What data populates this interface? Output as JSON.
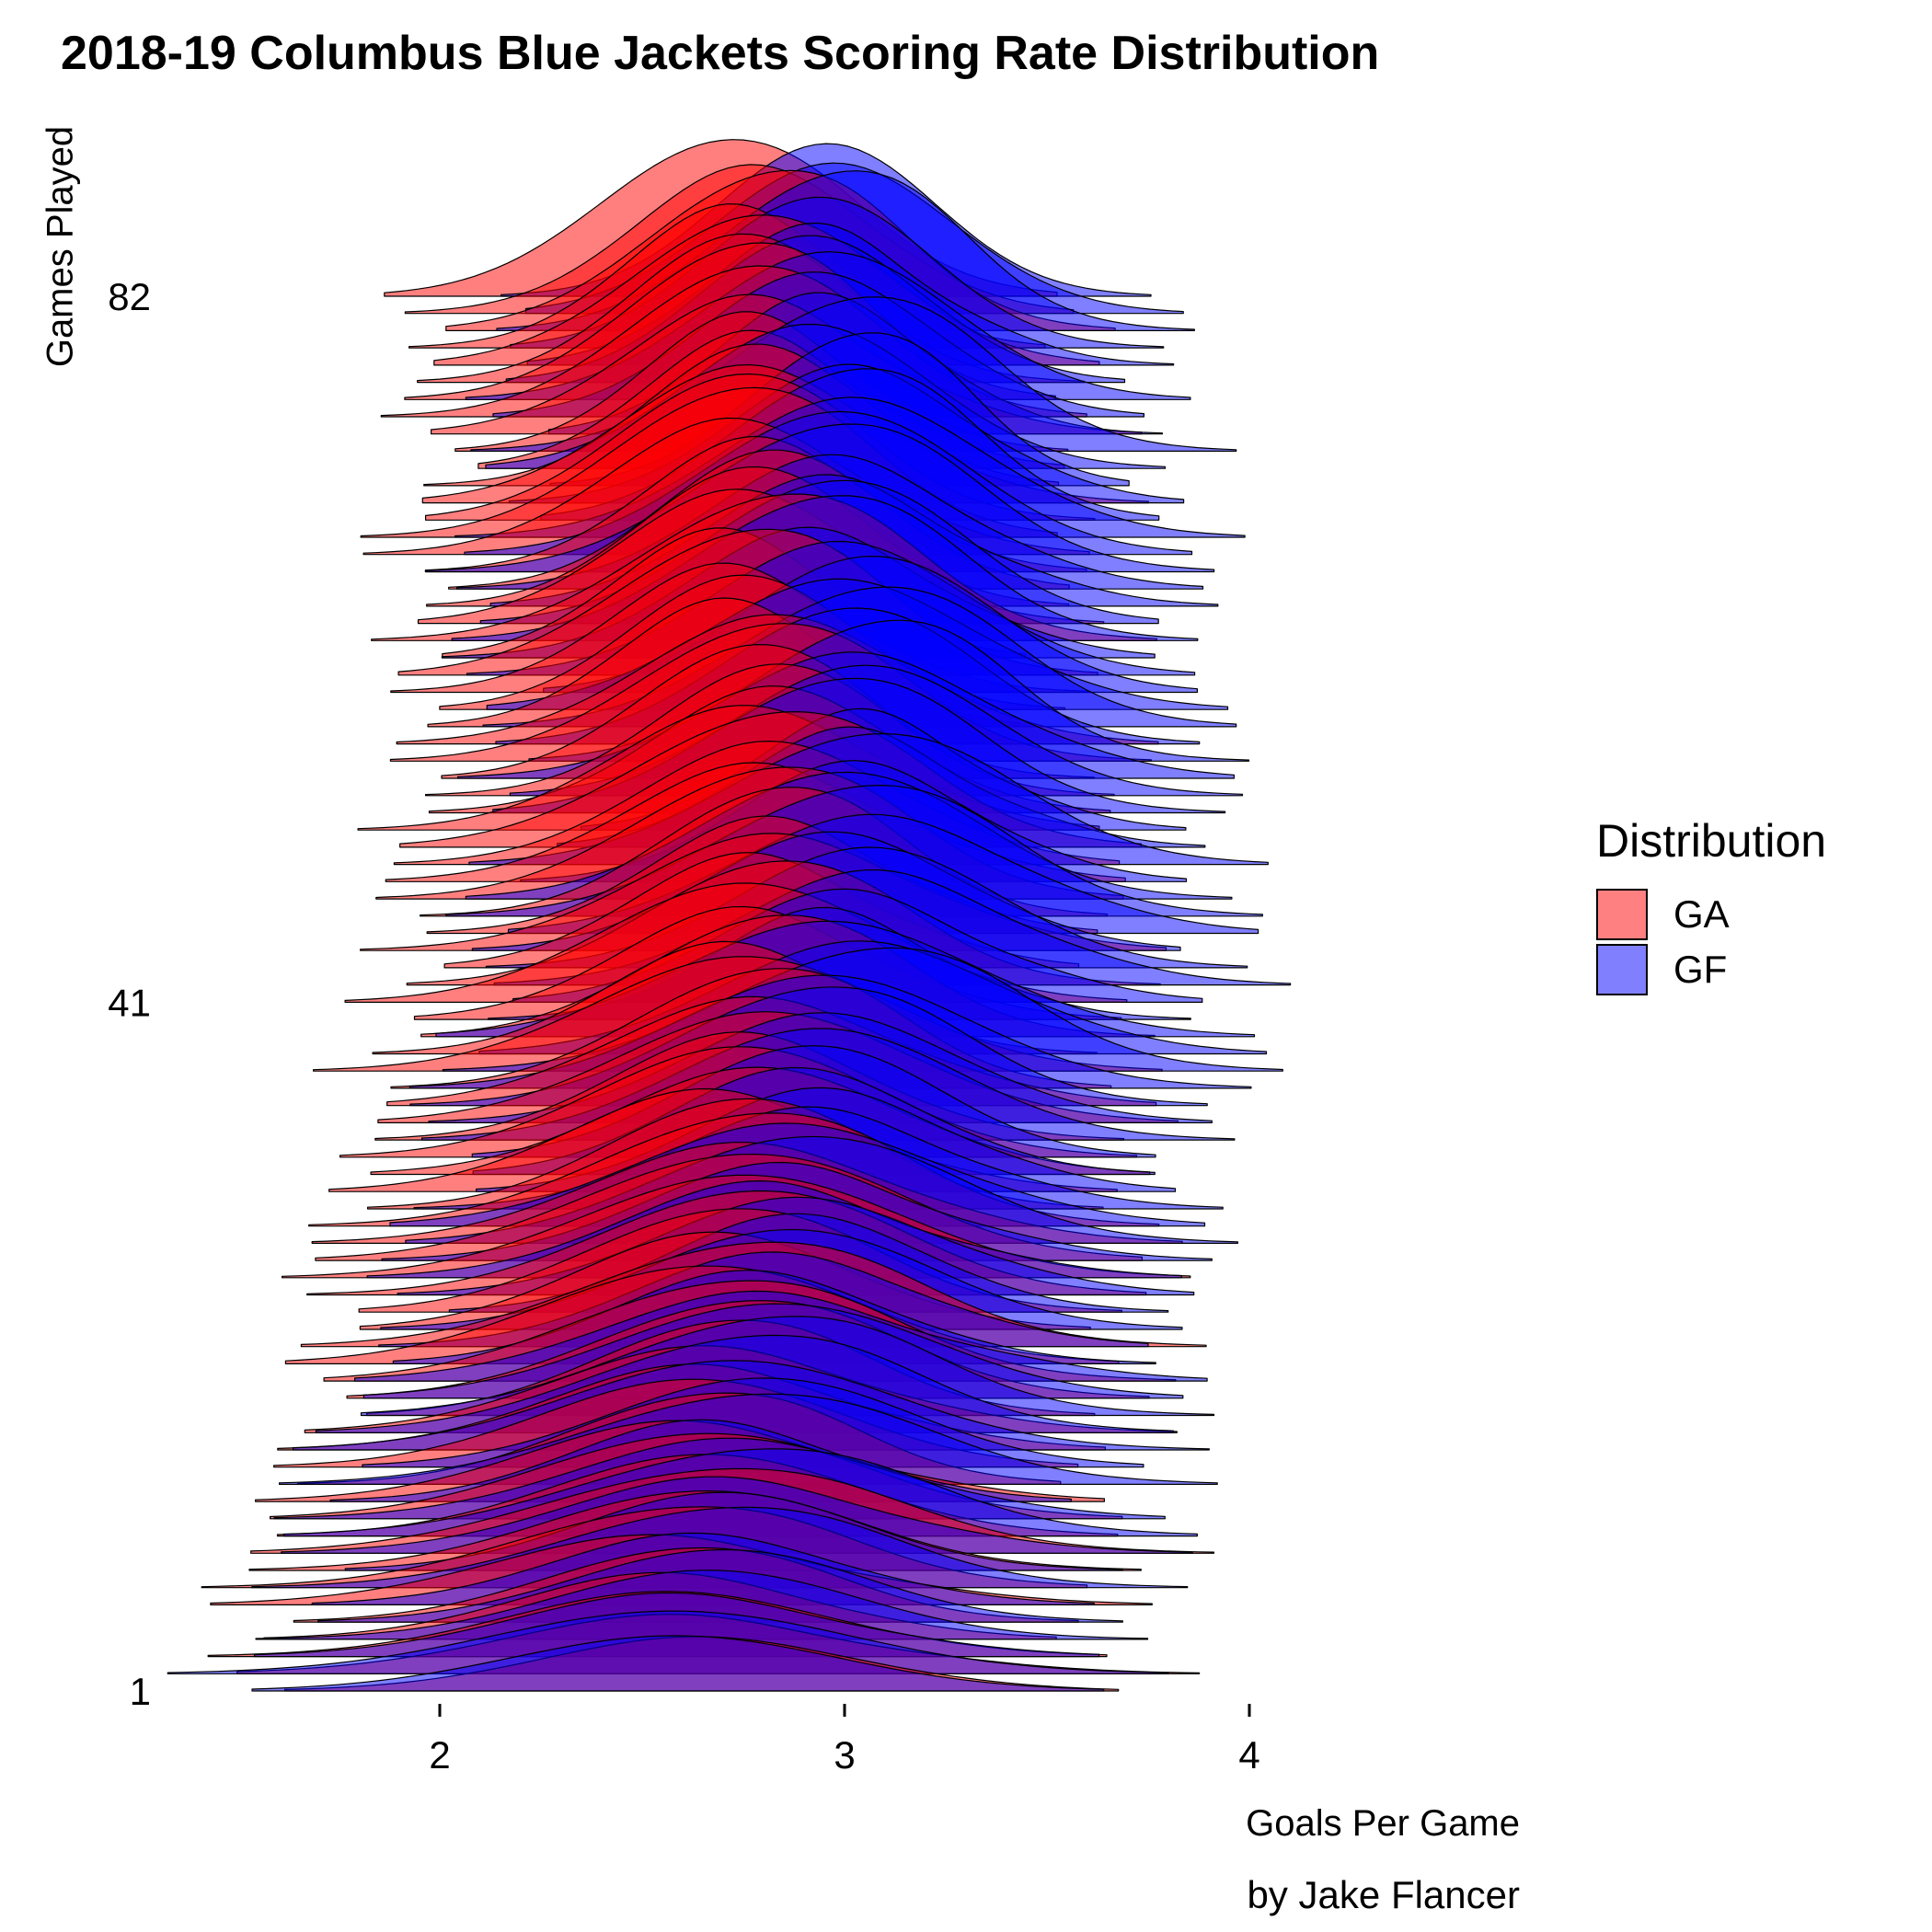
{
  "chart_data": {
    "type": "ridgeline",
    "title": "2018-19 Columbus Blue Jackets Scoring Rate Distribution",
    "xlabel": "Goals Per Game",
    "ylabel": "Games Played",
    "caption": "by Jake Flancer",
    "x_ticks": [
      2,
      3,
      4
    ],
    "y_ticks": [
      1,
      41,
      82
    ],
    "y_range": [
      1,
      82
    ],
    "legend": {
      "title": "Distribution",
      "position": "right",
      "entries": [
        {
          "label": "GA",
          "color": "#ff8080",
          "fill_alpha": 0.5,
          "base_color": "#ff0000"
        },
        {
          "label": "GF",
          "color": "#8080ff",
          "fill_alpha": 0.5,
          "base_color": "#0000ff"
        }
      ]
    },
    "series": [
      {
        "name": "GA",
        "peak_at_game_82": 2.76,
        "peak_at_game_41": 2.8,
        "peak_at_game_1": 2.6
      },
      {
        "name": "GF",
        "peak_at_game_82": 2.95,
        "peak_at_game_41": 3.05,
        "peak_at_game_1": 2.6
      }
    ],
    "grid": false
  }
}
